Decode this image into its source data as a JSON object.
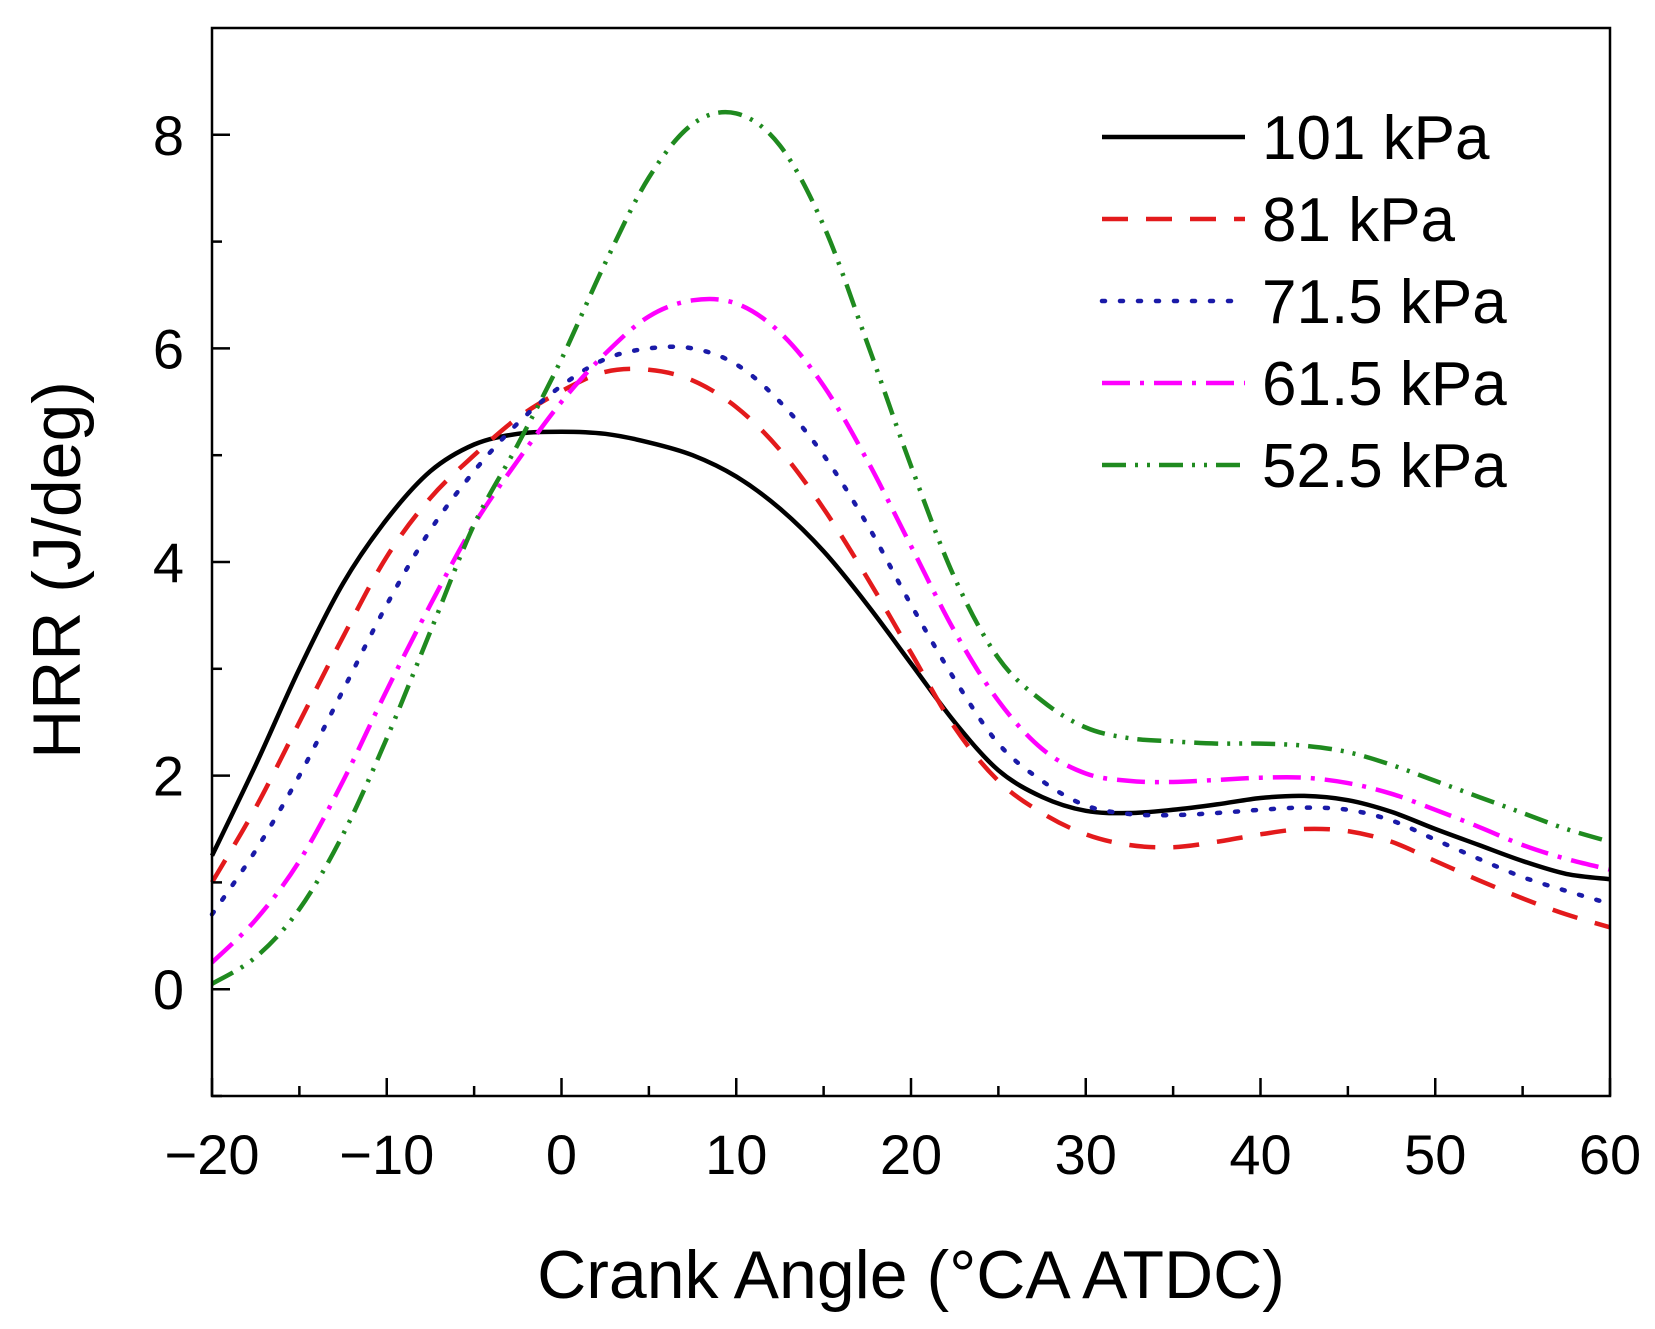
{
  "chart_data": {
    "type": "line",
    "title": "",
    "xlabel": "Crank Angle (°CA ATDC)",
    "ylabel": "HRR (J/deg)",
    "xlim": [
      -20,
      60
    ],
    "ylim": [
      -1,
      9
    ],
    "xticks": [
      -20,
      -10,
      0,
      10,
      20,
      30,
      40,
      50,
      60
    ],
    "xtick_labels": [
      "−20",
      "−10",
      "0",
      "10",
      "20",
      "30",
      "40",
      "50",
      "60"
    ],
    "yticks": [
      0,
      2,
      4,
      6,
      8
    ],
    "ytick_labels": [
      "0",
      "2",
      "4",
      "6",
      "8"
    ],
    "grid": false,
    "legend_position": "top-right",
    "series": [
      {
        "name": "101 kPa",
        "color": "#000000",
        "dash": "solid",
        "x": [
          -20,
          -17.5,
          -15,
          -12.5,
          -10,
          -7.5,
          -5,
          -2.5,
          0,
          2.5,
          5,
          7.5,
          10,
          12.5,
          15,
          17.5,
          20,
          22.5,
          25,
          27.5,
          30,
          32.5,
          35,
          37.5,
          40,
          42.5,
          45,
          47.5,
          50,
          52.5,
          55,
          57.5,
          60
        ],
        "y": [
          1.25,
          2.1,
          3.0,
          3.8,
          4.4,
          4.85,
          5.1,
          5.2,
          5.22,
          5.2,
          5.12,
          5.0,
          4.8,
          4.5,
          4.1,
          3.6,
          3.05,
          2.5,
          2.05,
          1.8,
          1.67,
          1.65,
          1.68,
          1.73,
          1.79,
          1.81,
          1.77,
          1.66,
          1.5,
          1.35,
          1.2,
          1.08,
          1.03
        ]
      },
      {
        "name": "81 kPa",
        "color": "#e31a1c",
        "dash": "dashed",
        "x": [
          -20,
          -17.5,
          -15,
          -12.5,
          -10,
          -7.5,
          -5,
          -2.5,
          0,
          2.5,
          5,
          7.5,
          10,
          12.5,
          15,
          17.5,
          20,
          22.5,
          25,
          27.5,
          30,
          32.5,
          35,
          37.5,
          40,
          42.5,
          45,
          47.5,
          50,
          52.5,
          55,
          57.5,
          60
        ],
        "y": [
          1.0,
          1.7,
          2.5,
          3.3,
          4.05,
          4.6,
          5.0,
          5.35,
          5.6,
          5.78,
          5.8,
          5.7,
          5.45,
          5.05,
          4.5,
          3.85,
          3.15,
          2.45,
          1.95,
          1.65,
          1.45,
          1.35,
          1.33,
          1.38,
          1.45,
          1.5,
          1.48,
          1.38,
          1.2,
          1.02,
          0.85,
          0.7,
          0.58
        ]
      },
      {
        "name": "71.5 kPa",
        "color": "#1a1aa8",
        "dash": "dotted",
        "x": [
          -20,
          -17.5,
          -15,
          -12.5,
          -10,
          -7.5,
          -5,
          -2.5,
          0,
          2.5,
          5,
          7.5,
          10,
          12.5,
          15,
          17.5,
          20,
          22.5,
          25,
          27.5,
          30,
          32.5,
          35,
          37.5,
          40,
          42.5,
          45,
          47.5,
          50,
          52.5,
          55,
          57.5,
          60
        ],
        "y": [
          0.7,
          1.3,
          2.0,
          2.8,
          3.6,
          4.3,
          4.85,
          5.3,
          5.65,
          5.9,
          6.0,
          6.0,
          5.85,
          5.5,
          5.0,
          4.35,
          3.6,
          2.9,
          2.3,
          1.95,
          1.72,
          1.64,
          1.63,
          1.65,
          1.68,
          1.7,
          1.68,
          1.58,
          1.4,
          1.22,
          1.05,
          0.92,
          0.8
        ]
      },
      {
        "name": "61.5 kPa",
        "color": "#ff00ff",
        "dash": "dashdot",
        "x": [
          -20,
          -17.5,
          -15,
          -12.5,
          -10,
          -7.5,
          -5,
          -2.5,
          0,
          2.5,
          5,
          7.5,
          10,
          12.5,
          15,
          17.5,
          20,
          22.5,
          25,
          27.5,
          30,
          32.5,
          35,
          37.5,
          40,
          42.5,
          45,
          47.5,
          50,
          52.5,
          55,
          57.5,
          60
        ],
        "y": [
          0.25,
          0.65,
          1.2,
          1.95,
          2.8,
          3.6,
          4.35,
          4.95,
          5.5,
          5.95,
          6.3,
          6.45,
          6.42,
          6.15,
          5.65,
          4.95,
          4.15,
          3.35,
          2.7,
          2.25,
          2.02,
          1.95,
          1.94,
          1.96,
          1.98,
          1.98,
          1.93,
          1.83,
          1.68,
          1.52,
          1.35,
          1.22,
          1.12
        ]
      },
      {
        "name": "52.5 kPa",
        "color": "#1f8a1f",
        "dash": "dashdotdot",
        "x": [
          -20,
          -17.5,
          -15,
          -12.5,
          -10,
          -7.5,
          -5,
          -2.5,
          0,
          2.5,
          5,
          7.5,
          10,
          12.5,
          15,
          17.5,
          20,
          22.5,
          25,
          27.5,
          30,
          32.5,
          35,
          37.5,
          40,
          42.5,
          45,
          47.5,
          50,
          52.5,
          55,
          57.5,
          60
        ],
        "y": [
          0.05,
          0.3,
          0.75,
          1.45,
          2.35,
          3.35,
          4.35,
          5.1,
          5.9,
          6.8,
          7.6,
          8.1,
          8.2,
          7.9,
          7.15,
          6.05,
          4.9,
          3.85,
          3.1,
          2.7,
          2.45,
          2.35,
          2.32,
          2.3,
          2.3,
          2.28,
          2.22,
          2.1,
          1.95,
          1.8,
          1.65,
          1.5,
          1.38
        ]
      }
    ]
  }
}
